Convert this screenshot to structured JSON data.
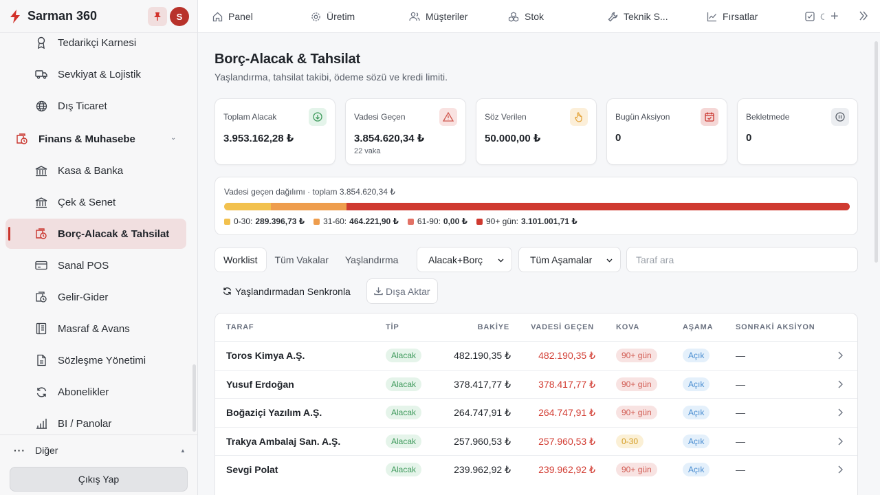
{
  "app": {
    "name": "Sarman 360",
    "avatar_initial": "S"
  },
  "sidebar": {
    "items_top": [
      {
        "label": "Tedarikçi Karnesi",
        "icon": "award-icon"
      },
      {
        "label": "Sevkiyat & Lojistik",
        "icon": "truck-icon"
      },
      {
        "label": "Dış Ticaret",
        "icon": "globe-icon"
      }
    ],
    "group": {
      "label": "Finans & Muhasebe",
      "icon": "finance-icon"
    },
    "items": [
      {
        "label": "Kasa & Banka",
        "icon": "bank-icon"
      },
      {
        "label": "Çek & Senet",
        "icon": "bank-icon"
      },
      {
        "label": "Borç-Alacak & Tahsilat",
        "icon": "finance-icon",
        "active": true
      },
      {
        "label": "Sanal POS",
        "icon": "credit-card-icon"
      },
      {
        "label": "Gelir-Gider",
        "icon": "finance-icon"
      },
      {
        "label": "Masraf & Avans",
        "icon": "receipt-icon"
      },
      {
        "label": "Sözleşme Yönetimi",
        "icon": "file-icon"
      },
      {
        "label": "Abonelikler",
        "icon": "refresh-icon"
      },
      {
        "label": "BI / Panolar",
        "icon": "bar-chart-icon"
      }
    ],
    "other_label": "Diğer",
    "logout_label": "Çıkış Yap"
  },
  "topbar": {
    "tabs": [
      {
        "label": "Panel",
        "icon": "home-icon"
      },
      {
        "label": "Üretim",
        "icon": "gear-icon"
      },
      {
        "label": "Müşteriler",
        "icon": "users-icon"
      },
      {
        "label": "Stok",
        "icon": "boxes-icon"
      },
      {
        "label": "Teknik S...",
        "icon": "wrench-icon"
      },
      {
        "label": "Fırsatlar",
        "icon": "trend-icon"
      },
      {
        "label": "C",
        "icon": "check-square-icon"
      }
    ]
  },
  "page": {
    "title": "Borç-Alacak & Tahsilat",
    "subtitle": "Yaşlandırma, tahsilat takibi, ödeme sözü ve kredi limiti."
  },
  "kpis": [
    {
      "label": "Toplam Alacak",
      "value": "3.953.162,28 ₺",
      "sub": "",
      "icon": "arrow-down-circle-icon",
      "bg": "#e4f4ea",
      "fg": "#3f9a5c"
    },
    {
      "label": "Vadesi Geçen",
      "value": "3.854.620,34 ₺",
      "sub": "22 vaka",
      "icon": "alert-triangle-icon",
      "bg": "#f9e2e1",
      "fg": "#d0584f"
    },
    {
      "label": "Söz Verilen",
      "value": "50.000,00 ₺",
      "sub": "",
      "icon": "hand-icon",
      "bg": "#fcefd9",
      "fg": "#e3a033"
    },
    {
      "label": "Bugün Aksiyon",
      "value": "0",
      "sub": "",
      "icon": "calendar-check-icon",
      "bg": "#f5d7d6",
      "fg": "#c9342c"
    },
    {
      "label": "Bekletmede",
      "value": "0",
      "sub": "",
      "icon": "pause-circle-icon",
      "bg": "#eceef1",
      "fg": "#5a606a"
    }
  ],
  "distribution": {
    "title": "Vadesi geçen dağılımı · toplam 3.854.620,34 ₺",
    "buckets": [
      {
        "label": "0-30:",
        "value": "289.396,73 ₺",
        "fraction": 0.0751,
        "color": "#f2c14e"
      },
      {
        "label": "31-60:",
        "value": "464.221,90 ₺",
        "fraction": 0.1204,
        "color": "#ee9d4d"
      },
      {
        "label": "61-90:",
        "value": "0,00 ₺",
        "fraction": 0.0,
        "color": "#e27266"
      },
      {
        "label": "90+ gün:",
        "value": "3.101.001,71 ₺",
        "fraction": 0.8045,
        "color": "#cf3a30"
      }
    ]
  },
  "filters": {
    "tabs": [
      "Worklist",
      "Tüm Vakalar",
      "Yaşlandırma"
    ],
    "type_select": "Alacak+Borç",
    "stage_select": "Tüm Aşamalar",
    "search_placeholder": "Taraf ara",
    "sync_label": "Yaşlandırmadan Senkronla",
    "export_label": "Dışa Aktar"
  },
  "table": {
    "headers": {
      "party": "TARAF",
      "type": "TİP",
      "balance": "BAKİYE",
      "overdue": "VADESİ GEÇEN",
      "bucket": "KOVA",
      "stage": "AŞAMA",
      "next": "SONRAKİ AKSİYON"
    },
    "rows": [
      {
        "party": "Toros Kimya A.Ş.",
        "type": "Alacak",
        "balance": "482.190,35 ₺",
        "overdue": "482.190,35 ₺",
        "bucket": "90+ gün",
        "bucket_tone": "red",
        "stage": "Açık",
        "next": "—"
      },
      {
        "party": "Yusuf Erdoğan",
        "type": "Alacak",
        "balance": "378.417,77 ₺",
        "overdue": "378.417,77 ₺",
        "bucket": "90+ gün",
        "bucket_tone": "red",
        "stage": "Açık",
        "next": "—"
      },
      {
        "party": "Boğaziçi Yazılım A.Ş.",
        "type": "Alacak",
        "balance": "264.747,91 ₺",
        "overdue": "264.747,91 ₺",
        "bucket": "90+ gün",
        "bucket_tone": "red",
        "stage": "Açık",
        "next": "—"
      },
      {
        "party": "Trakya Ambalaj San. A.Ş.",
        "type": "Alacak",
        "balance": "257.960,53 ₺",
        "overdue": "257.960,53 ₺",
        "bucket": "0-30",
        "bucket_tone": "yellow",
        "stage": "Açık",
        "next": "—"
      },
      {
        "party": "Sevgi Polat",
        "type": "Alacak",
        "balance": "239.962,92 ₺",
        "overdue": "239.962,92 ₺",
        "bucket": "90+ gün",
        "bucket_tone": "red",
        "stage": "Açık",
        "next": "—"
      }
    ]
  }
}
